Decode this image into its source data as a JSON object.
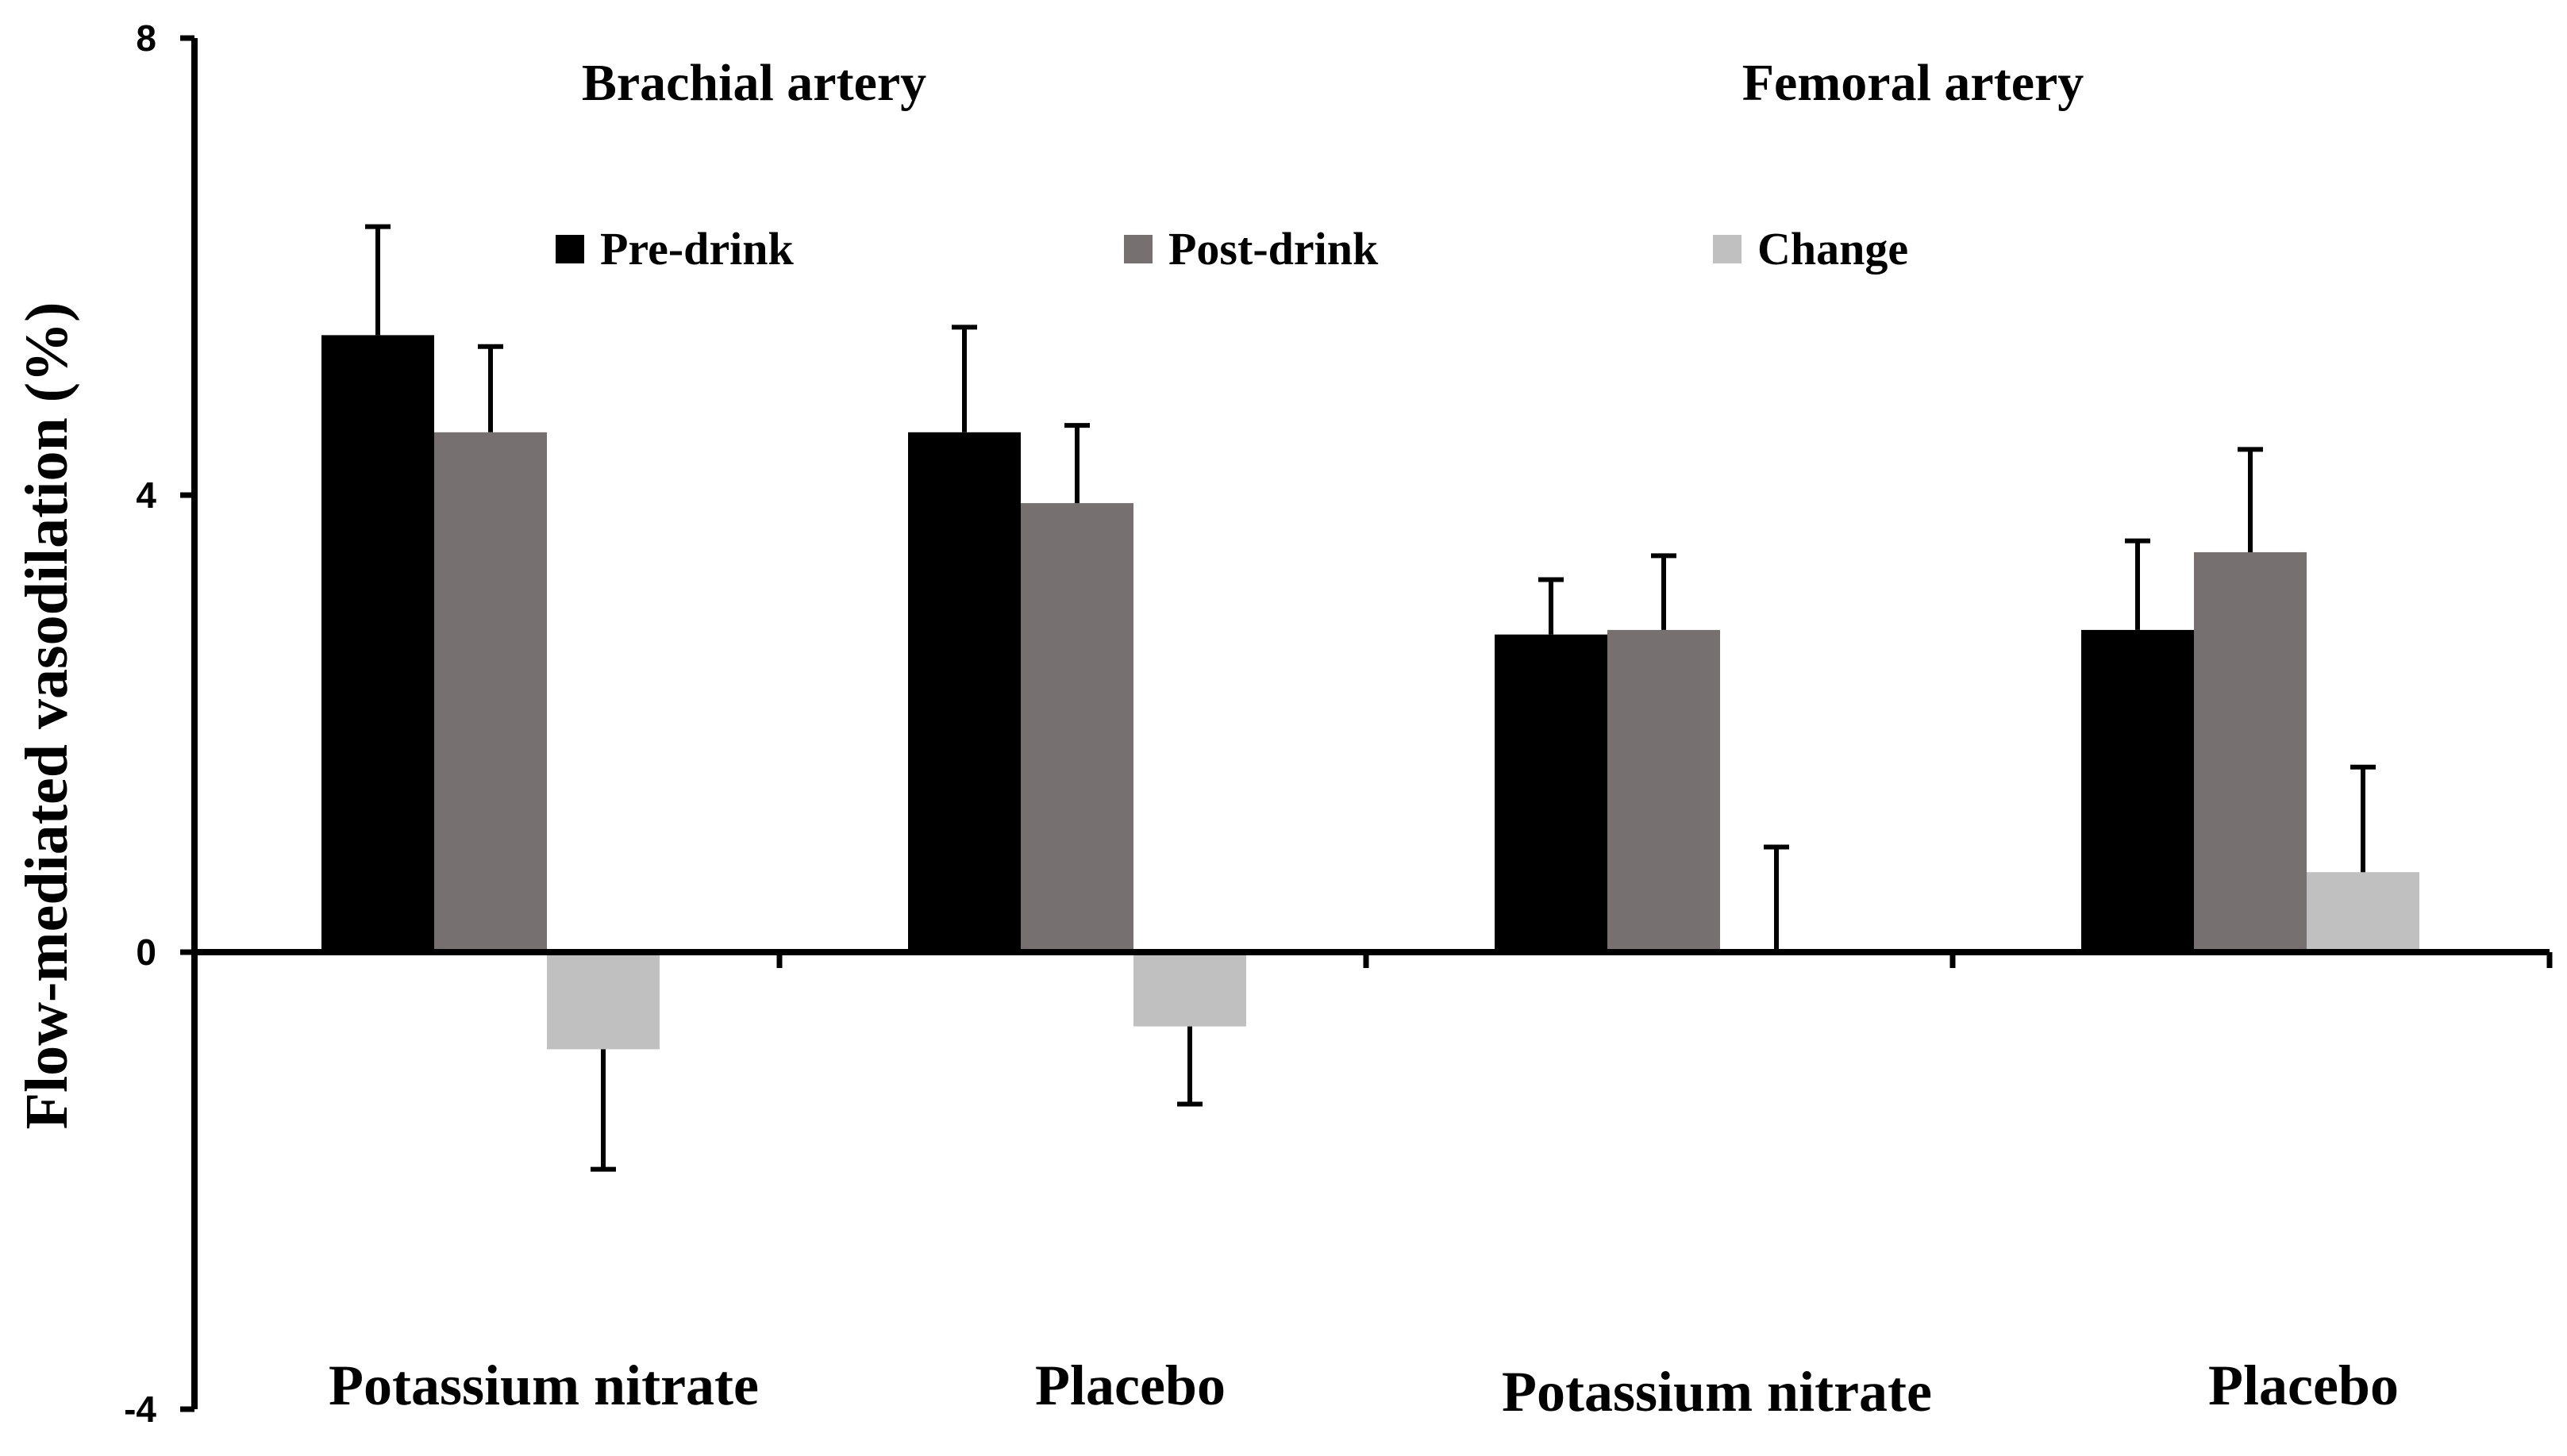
{
  "chart_data": {
    "type": "bar",
    "ylabel": "Flow-mediated vasodilation (%)",
    "xlabel": "",
    "ylim": [
      -4,
      8
    ],
    "yticks": [
      {
        "value": 8,
        "label": "8"
      },
      {
        "value": 4,
        "label": "4"
      },
      {
        "value": 0,
        "label": "0"
      },
      {
        "value": -4,
        "label": "-4"
      }
    ],
    "group_titles": [
      "Brachial artery",
      "Femoral artery"
    ],
    "categories": [
      "Potassium nitrate",
      "Placebo",
      "Potassium nitrate",
      "Placebo"
    ],
    "series": [
      {
        "name": "Pre-drink",
        "color": "#000000",
        "values": [
          5.4,
          4.55,
          2.78,
          2.82
        ],
        "errors": [
          0.95,
          0.92,
          0.48,
          0.78
        ]
      },
      {
        "name": "Post-drink",
        "color": "#767170",
        "values": [
          4.55,
          3.93,
          2.82,
          3.5
        ],
        "errors": [
          0.75,
          0.68,
          0.65,
          0.9
        ]
      },
      {
        "name": "Change",
        "color": "#c0c0c0",
        "values": [
          -0.85,
          -0.65,
          0.0,
          0.7
        ],
        "errors": [
          1.05,
          0.68,
          0.92,
          0.92
        ]
      }
    ]
  }
}
